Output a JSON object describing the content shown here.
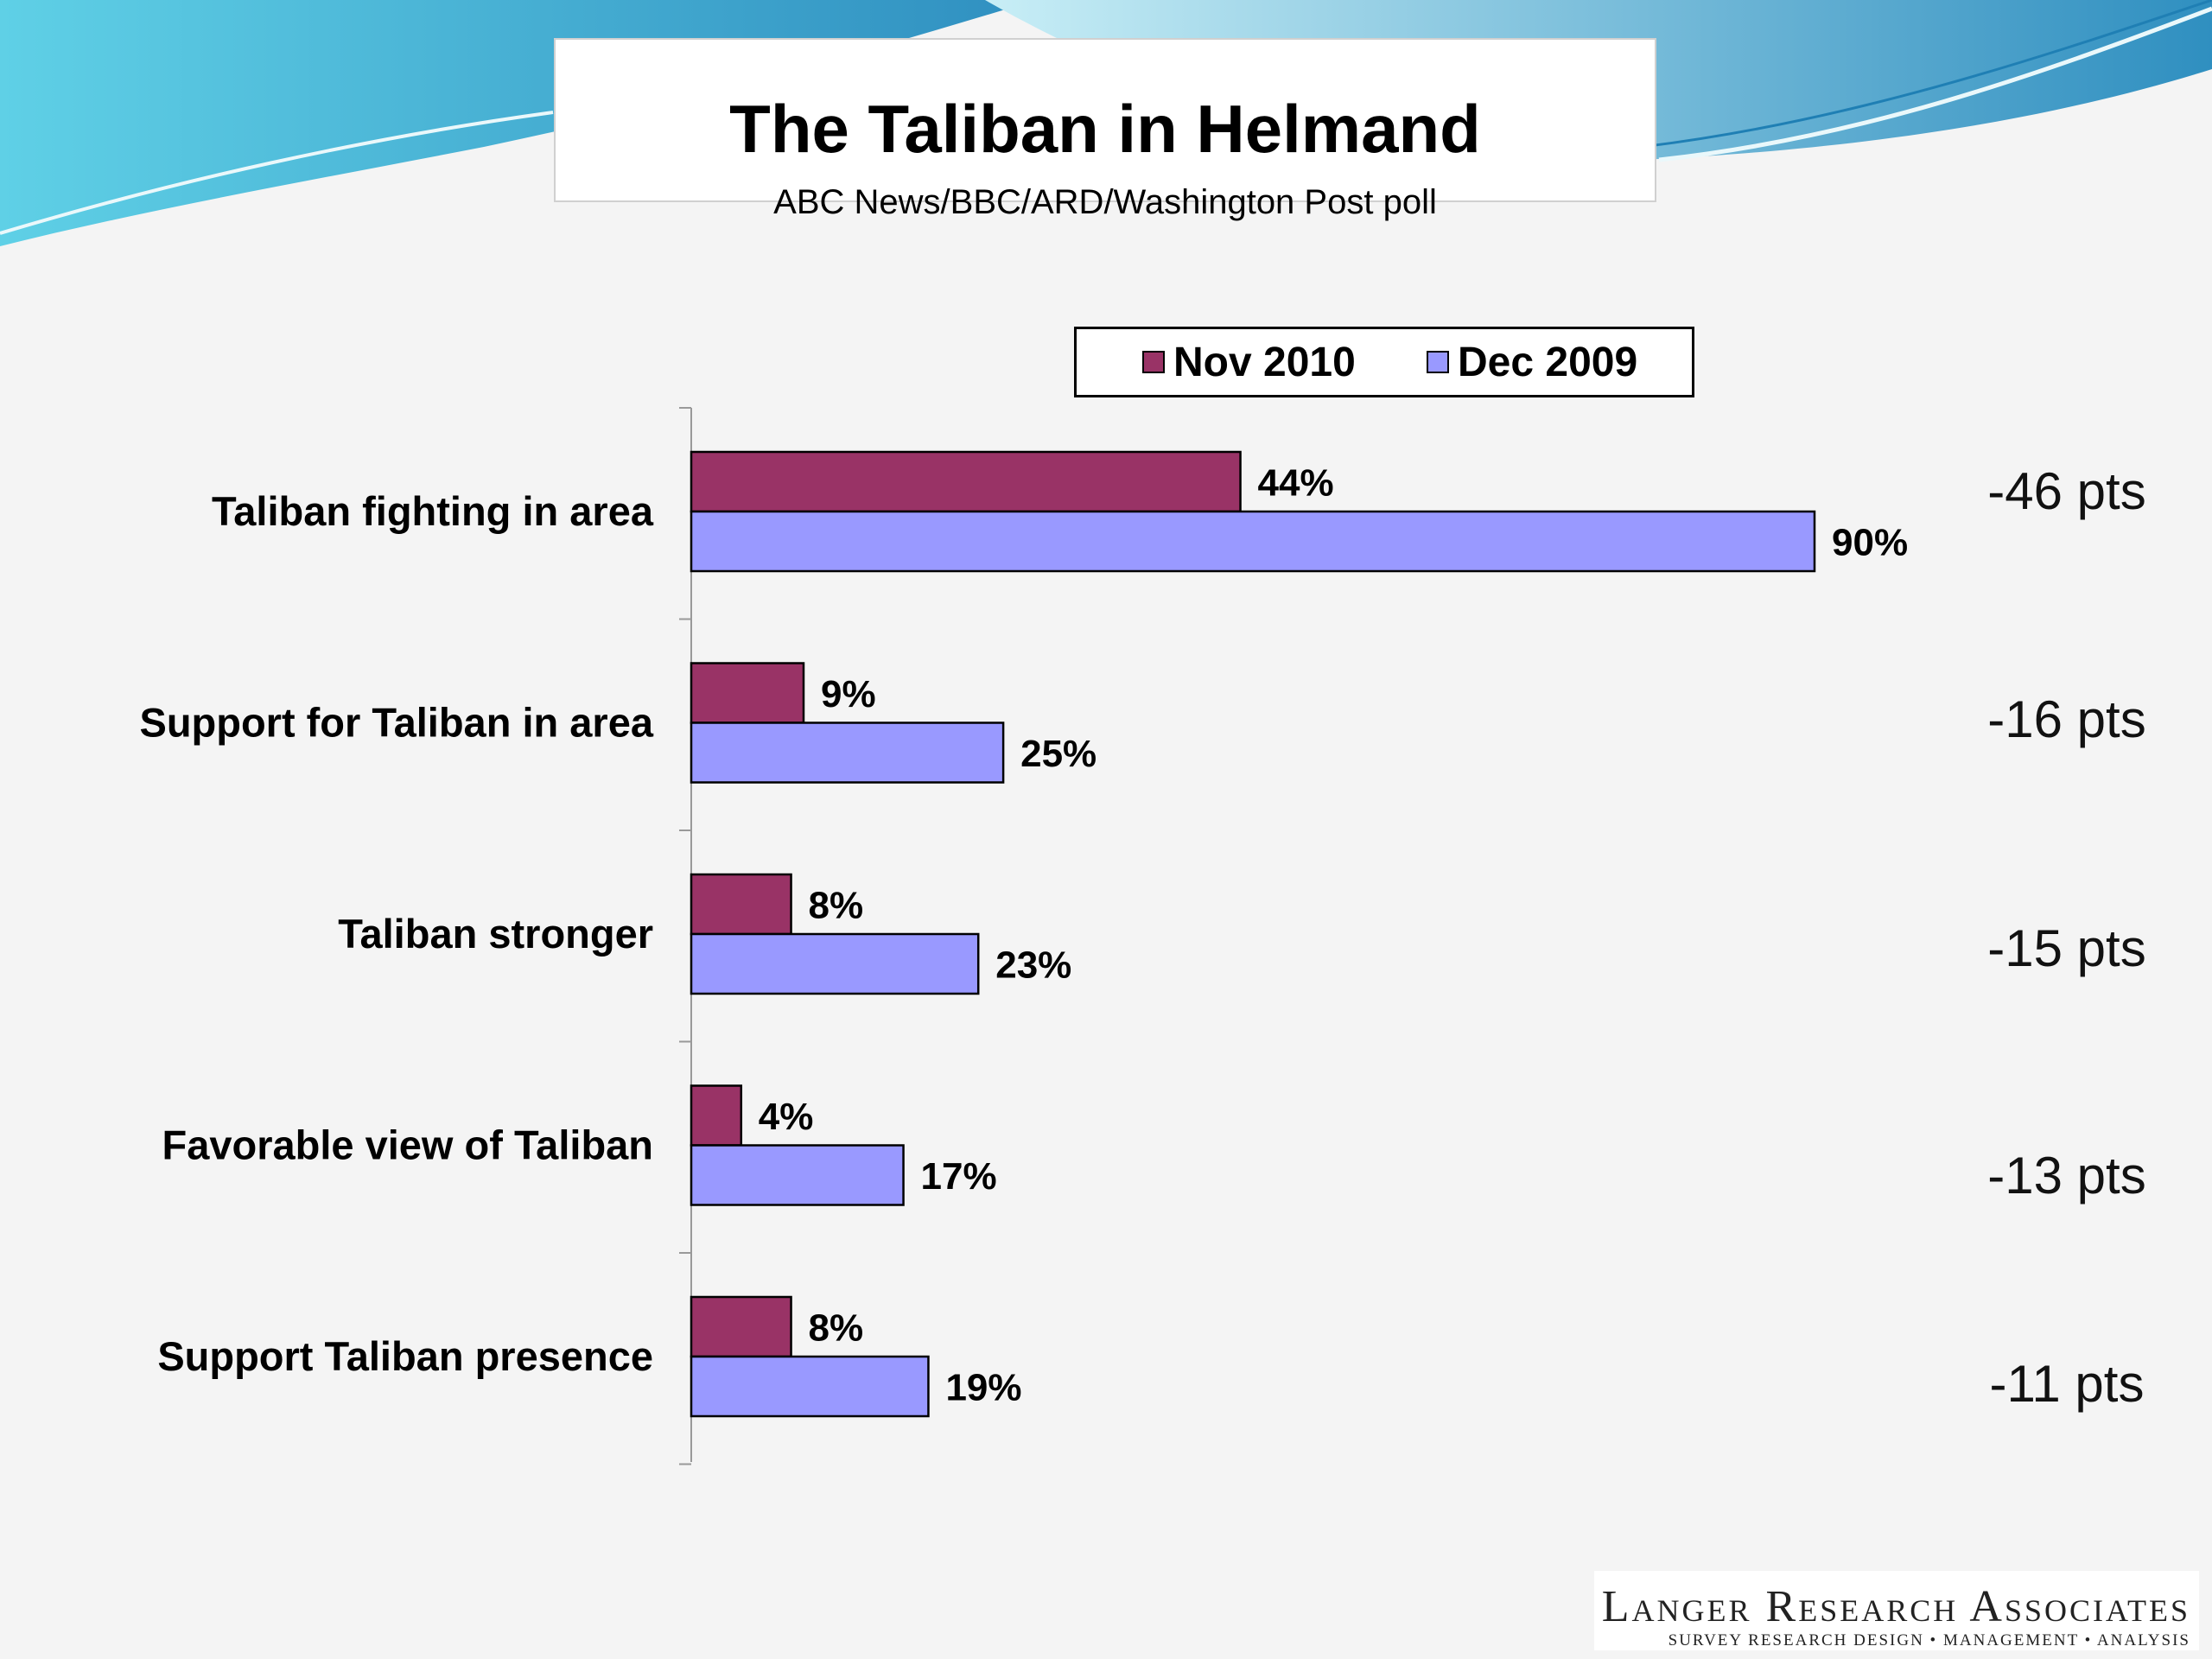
{
  "header": {
    "title": "The Taliban in Helmand",
    "subtitle": "ABC News/BBC/ARD/Washington Post poll"
  },
  "colors": {
    "nov2010": "#993366",
    "dec2009": "#9999ff",
    "wave_dark": "#3fa6c8",
    "wave_light": "#a6dcea"
  },
  "legend": {
    "items": [
      {
        "label": "Nov 2010",
        "color": "#993366"
      },
      {
        "label": "Dec 2009",
        "color": "#9999ff"
      }
    ]
  },
  "chart_data": {
    "type": "bar",
    "orientation": "horizontal",
    "categories": [
      "Taliban fighting in area",
      "Support for Taliban in area",
      "Taliban stronger",
      "Favorable view of Taliban",
      "Support Taliban presence"
    ],
    "series": [
      {
        "name": "Nov 2010",
        "values": [
          44,
          9,
          8,
          4,
          8
        ],
        "labels": [
          "44%",
          "9%",
          "8%",
          "4%",
          "8%"
        ]
      },
      {
        "name": "Dec 2009",
        "values": [
          90,
          25,
          23,
          17,
          19
        ],
        "labels": [
          "90%",
          "25%",
          "23%",
          "17%",
          "19%"
        ]
      }
    ],
    "differences": [
      "-46 pts",
      "-16 pts",
      "-15 pts",
      "-13 pts",
      "-11 pts"
    ],
    "xlim": [
      0,
      100
    ],
    "legend_position": "top",
    "grid": false
  },
  "footer": {
    "logo_name": "Langer Research Associates",
    "logo_tagline": "SURVEY RESEARCH DESIGN • MANAGEMENT • ANALYSIS"
  }
}
